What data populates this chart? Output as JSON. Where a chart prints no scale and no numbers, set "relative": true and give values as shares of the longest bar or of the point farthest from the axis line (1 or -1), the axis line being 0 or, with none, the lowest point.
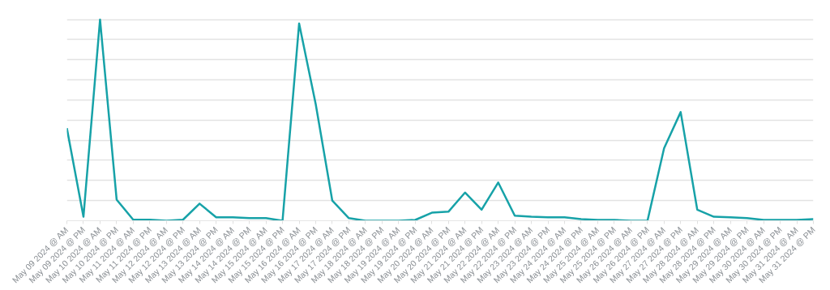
{
  "chart_data": {
    "type": "line",
    "relative": true,
    "grid": "y",
    "marker": "none",
    "line_style": "solid",
    "categories": [
      "May 09 2024 @ AM",
      "May 09 2024 @ PM",
      "May 10 2024 @ AM",
      "May 10 2024 @ PM",
      "May 11 2024 @ AM",
      "May 11 2024 @ PM",
      "May 12 2024 @ AM",
      "May 12 2024 @ PM",
      "May 13 2024 @ AM",
      "May 13 2024 @ PM",
      "May 14 2024 @ AM",
      "May 14 2024 @ PM",
      "May 15 2024 @ AM",
      "May 15 2024 @ PM",
      "May 16 2024 @ AM",
      "May 16 2024 @ PM",
      "May 17 2024 @ AM",
      "May 17 2024 @ PM",
      "May 18 2024 @ AM",
      "May 18 2024 @ PM",
      "May 19 2024 @ AM",
      "May 19 2024 @ PM",
      "May 20 2024 @ AM",
      "May 20 2024 @ PM",
      "May 21 2024 @ AM",
      "May 21 2024 @ PM",
      "May 22 2024 @ AM",
      "May 22 2024 @ PM",
      "May 23 2024 @ AM",
      "May 23 2024 @ PM",
      "May 24 2024 @ AM",
      "May 24 2024 @ PM",
      "May 25 2024 @ AM",
      "May 25 2024 @ PM",
      "May 26 2024 @ AM",
      "May 26 2024 @ PM",
      "May 27 2024 @ AM",
      "May 27 2024 @ PM",
      "May 28 2024 @ AM",
      "May 28 2024 @ PM",
      "May 29 2024 @ AM",
      "May 29 2024 @ PM",
      "May 30 2024 @ AM",
      "May 30 2024 @ PM",
      "May 31 2024 @ AM",
      "May 31 2024 @ PM"
    ],
    "series": [
      {
        "color": "#17a2a8",
        "values": [
          0.46,
          0.02,
          1.0,
          0.105,
          0.005,
          0.005,
          0.0,
          0.005,
          0.085,
          0.017,
          0.017,
          0.013,
          0.013,
          0.0,
          0.98,
          0.58,
          0.1,
          0.013,
          0.0,
          0.0,
          0.0,
          0.004,
          0.04,
          0.045,
          0.14,
          0.055,
          0.19,
          0.025,
          0.02,
          0.017,
          0.017,
          0.008,
          0.004,
          0.004,
          0.0,
          0.0,
          0.36,
          0.54,
          0.055,
          0.02,
          0.017,
          0.013,
          0.004,
          0.004,
          0.004,
          0.008
        ]
      }
    ]
  }
}
